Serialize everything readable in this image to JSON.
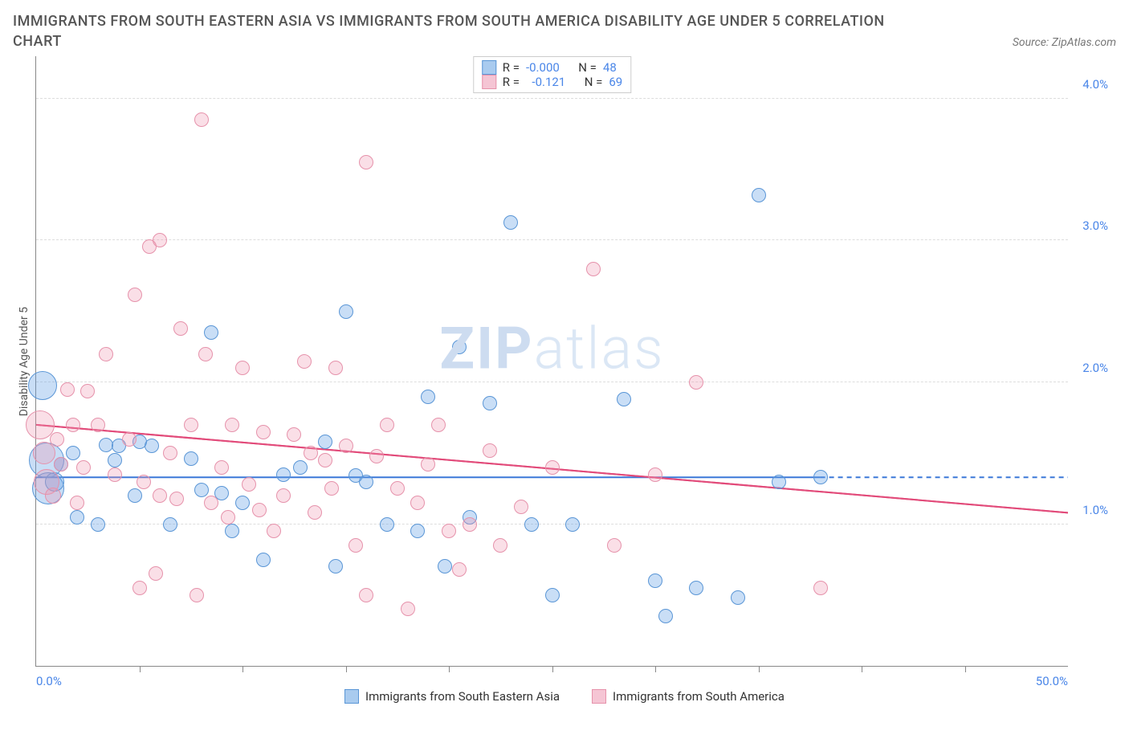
{
  "title_line1": "IMMIGRANTS FROM SOUTH EASTERN ASIA VS IMMIGRANTS FROM SOUTH AMERICA DISABILITY AGE UNDER 5 CORRELATION",
  "title_line2": "CHART",
  "source_prefix": "Source: ",
  "source_name": "ZipAtlas.com",
  "y_axis_label": "Disability Age Under 5",
  "watermark_bold": "ZIP",
  "watermark_light": "atlas",
  "chart": {
    "type": "scatter",
    "xlim": [
      0,
      50
    ],
    "ylim": [
      0,
      4.3
    ],
    "x_min_label": "0.0%",
    "x_max_label": "50.0%",
    "y_ticks": [
      1.0,
      2.0,
      3.0,
      4.0
    ],
    "y_tick_labels": [
      "1.0%",
      "2.0%",
      "3.0%",
      "4.0%"
    ],
    "x_ticks_minor": [
      5,
      10,
      15,
      20,
      25,
      30,
      35,
      40,
      45
    ],
    "grid_color": "#dddddd",
    "background_color": "#ffffff",
    "axis_color": "#888888",
    "tick_label_color": "#4a86e8",
    "series": [
      {
        "name": "Immigrants from South Eastern Asia",
        "short": "blue",
        "fill": "rgba(100,160,230,0.35)",
        "stroke": "#5a96d6",
        "swatch_fill": "#a9cbef",
        "swatch_stroke": "#5a96d6",
        "R": "-0.000",
        "N": "48",
        "trend": {
          "y_at_x0": 1.33,
          "y_at_xmax": 1.33,
          "x_end": 38,
          "dashed_after": true,
          "color": "#3b78d8",
          "width": 2
        },
        "points": [
          {
            "x": 0.3,
            "y": 1.98,
            "r": 18
          },
          {
            "x": 0.5,
            "y": 1.45,
            "r": 22
          },
          {
            "x": 0.6,
            "y": 1.25,
            "r": 20
          },
          {
            "x": 0.9,
            "y": 1.3,
            "r": 12
          },
          {
            "x": 1.2,
            "y": 1.42,
            "r": 9
          },
          {
            "x": 1.8,
            "y": 1.5,
            "r": 9
          },
          {
            "x": 2.0,
            "y": 1.05,
            "r": 9
          },
          {
            "x": 3.0,
            "y": 1.0,
            "r": 9
          },
          {
            "x": 3.4,
            "y": 1.56,
            "r": 9
          },
          {
            "x": 3.8,
            "y": 1.45,
            "r": 9
          },
          {
            "x": 4.0,
            "y": 1.55,
            "r": 9
          },
          {
            "x": 4.8,
            "y": 1.2,
            "r": 9
          },
          {
            "x": 5.0,
            "y": 1.58,
            "r": 9
          },
          {
            "x": 5.6,
            "y": 1.55,
            "r": 9
          },
          {
            "x": 6.5,
            "y": 1.0,
            "r": 9
          },
          {
            "x": 7.5,
            "y": 1.46,
            "r": 9
          },
          {
            "x": 8.0,
            "y": 1.24,
            "r": 9
          },
          {
            "x": 8.5,
            "y": 2.35,
            "r": 9
          },
          {
            "x": 9.0,
            "y": 1.22,
            "r": 9
          },
          {
            "x": 9.5,
            "y": 0.95,
            "r": 9
          },
          {
            "x": 10.0,
            "y": 1.15,
            "r": 9
          },
          {
            "x": 11.0,
            "y": 0.75,
            "r": 9
          },
          {
            "x": 12.0,
            "y": 1.35,
            "r": 9
          },
          {
            "x": 12.8,
            "y": 1.4,
            "r": 9
          },
          {
            "x": 14.0,
            "y": 1.58,
            "r": 9
          },
          {
            "x": 14.5,
            "y": 0.7,
            "r": 9
          },
          {
            "x": 15.0,
            "y": 2.5,
            "r": 9
          },
          {
            "x": 15.5,
            "y": 1.34,
            "r": 9
          },
          {
            "x": 16.0,
            "y": 1.3,
            "r": 9
          },
          {
            "x": 17.0,
            "y": 1.0,
            "r": 9
          },
          {
            "x": 18.5,
            "y": 0.95,
            "r": 9
          },
          {
            "x": 19.0,
            "y": 1.9,
            "r": 9
          },
          {
            "x": 19.8,
            "y": 0.7,
            "r": 9
          },
          {
            "x": 20.5,
            "y": 2.25,
            "r": 9
          },
          {
            "x": 21.0,
            "y": 1.05,
            "r": 9
          },
          {
            "x": 22.0,
            "y": 1.85,
            "r": 9
          },
          {
            "x": 23.0,
            "y": 3.13,
            "r": 9
          },
          {
            "x": 24.0,
            "y": 1.0,
            "r": 9
          },
          {
            "x": 25.0,
            "y": 0.5,
            "r": 9
          },
          {
            "x": 26.0,
            "y": 1.0,
            "r": 9
          },
          {
            "x": 28.5,
            "y": 1.88,
            "r": 9
          },
          {
            "x": 30.0,
            "y": 0.6,
            "r": 9
          },
          {
            "x": 30.5,
            "y": 0.35,
            "r": 9
          },
          {
            "x": 32.0,
            "y": 0.55,
            "r": 9
          },
          {
            "x": 34.0,
            "y": 0.48,
            "r": 9
          },
          {
            "x": 35.0,
            "y": 3.32,
            "r": 9
          },
          {
            "x": 36.0,
            "y": 1.3,
            "r": 9
          },
          {
            "x": 38.0,
            "y": 1.33,
            "r": 9
          }
        ]
      },
      {
        "name": "Immigrants from South America",
        "short": "pink",
        "fill": "rgba(240,150,175,0.30)",
        "stroke": "#e692ab",
        "swatch_fill": "#f5c5d4",
        "swatch_stroke": "#e692ab",
        "R": "-0.121",
        "N": "69",
        "trend": {
          "y_at_x0": 1.7,
          "y_at_xmax": 1.08,
          "x_end": 50,
          "dashed_after": false,
          "color": "#e24b7a",
          "width": 2
        },
        "points": [
          {
            "x": 0.2,
            "y": 1.7,
            "r": 18
          },
          {
            "x": 0.4,
            "y": 1.5,
            "r": 14
          },
          {
            "x": 0.5,
            "y": 1.3,
            "r": 16
          },
          {
            "x": 0.8,
            "y": 1.2,
            "r": 10
          },
          {
            "x": 1.0,
            "y": 1.6,
            "r": 9
          },
          {
            "x": 1.2,
            "y": 1.42,
            "r": 9
          },
          {
            "x": 1.5,
            "y": 1.95,
            "r": 9
          },
          {
            "x": 1.8,
            "y": 1.7,
            "r": 9
          },
          {
            "x": 2.0,
            "y": 1.15,
            "r": 9
          },
          {
            "x": 2.3,
            "y": 1.4,
            "r": 9
          },
          {
            "x": 2.5,
            "y": 1.94,
            "r": 9
          },
          {
            "x": 3.0,
            "y": 1.7,
            "r": 9
          },
          {
            "x": 3.4,
            "y": 2.2,
            "r": 9
          },
          {
            "x": 3.8,
            "y": 1.35,
            "r": 9
          },
          {
            "x": 4.5,
            "y": 1.6,
            "r": 9
          },
          {
            "x": 4.8,
            "y": 2.62,
            "r": 9
          },
          {
            "x": 5.0,
            "y": 0.55,
            "r": 9
          },
          {
            "x": 5.2,
            "y": 1.3,
            "r": 9
          },
          {
            "x": 5.5,
            "y": 2.96,
            "r": 9
          },
          {
            "x": 5.8,
            "y": 0.65,
            "r": 9
          },
          {
            "x": 6.0,
            "y": 1.2,
            "r": 9
          },
          {
            "x": 6.0,
            "y": 3.0,
            "r": 9
          },
          {
            "x": 6.5,
            "y": 1.5,
            "r": 9
          },
          {
            "x": 6.8,
            "y": 1.18,
            "r": 9
          },
          {
            "x": 7.0,
            "y": 2.38,
            "r": 9
          },
          {
            "x": 7.5,
            "y": 1.7,
            "r": 9
          },
          {
            "x": 7.8,
            "y": 0.5,
            "r": 9
          },
          {
            "x": 8.0,
            "y": 3.85,
            "r": 9
          },
          {
            "x": 8.2,
            "y": 2.2,
            "r": 9
          },
          {
            "x": 8.5,
            "y": 1.15,
            "r": 9
          },
          {
            "x": 9.0,
            "y": 1.4,
            "r": 9
          },
          {
            "x": 9.3,
            "y": 1.05,
            "r": 9
          },
          {
            "x": 9.5,
            "y": 1.7,
            "r": 9
          },
          {
            "x": 10.0,
            "y": 2.1,
            "r": 9
          },
          {
            "x": 10.3,
            "y": 1.28,
            "r": 9
          },
          {
            "x": 10.8,
            "y": 1.1,
            "r": 9
          },
          {
            "x": 11.0,
            "y": 1.65,
            "r": 9
          },
          {
            "x": 11.5,
            "y": 0.95,
            "r": 9
          },
          {
            "x": 12.0,
            "y": 1.2,
            "r": 9
          },
          {
            "x": 12.5,
            "y": 1.63,
            "r": 9
          },
          {
            "x": 13.0,
            "y": 2.15,
            "r": 9
          },
          {
            "x": 13.3,
            "y": 1.5,
            "r": 9
          },
          {
            "x": 13.5,
            "y": 1.08,
            "r": 9
          },
          {
            "x": 14.0,
            "y": 1.45,
            "r": 9
          },
          {
            "x": 14.3,
            "y": 1.25,
            "r": 9
          },
          {
            "x": 14.5,
            "y": 2.1,
            "r": 9
          },
          {
            "x": 15.0,
            "y": 1.55,
            "r": 9
          },
          {
            "x": 15.5,
            "y": 0.85,
            "r": 9
          },
          {
            "x": 16.0,
            "y": 0.5,
            "r": 9
          },
          {
            "x": 16.0,
            "y": 3.55,
            "r": 9
          },
          {
            "x": 16.5,
            "y": 1.48,
            "r": 9
          },
          {
            "x": 17.0,
            "y": 1.7,
            "r": 9
          },
          {
            "x": 17.5,
            "y": 1.25,
            "r": 9
          },
          {
            "x": 18.0,
            "y": 0.4,
            "r": 9
          },
          {
            "x": 18.5,
            "y": 1.15,
            "r": 9
          },
          {
            "x": 19.0,
            "y": 1.42,
            "r": 9
          },
          {
            "x": 19.5,
            "y": 1.7,
            "r": 9
          },
          {
            "x": 20.0,
            "y": 0.95,
            "r": 9
          },
          {
            "x": 20.5,
            "y": 0.68,
            "r": 9
          },
          {
            "x": 21.0,
            "y": 1.0,
            "r": 9
          },
          {
            "x": 22.0,
            "y": 1.52,
            "r": 9
          },
          {
            "x": 22.5,
            "y": 0.85,
            "r": 9
          },
          {
            "x": 23.5,
            "y": 1.12,
            "r": 9
          },
          {
            "x": 25.0,
            "y": 1.4,
            "r": 9
          },
          {
            "x": 27.0,
            "y": 2.8,
            "r": 9
          },
          {
            "x": 28.0,
            "y": 0.85,
            "r": 9
          },
          {
            "x": 30.0,
            "y": 1.35,
            "r": 9
          },
          {
            "x": 32.0,
            "y": 2.0,
            "r": 9
          },
          {
            "x": 38.0,
            "y": 0.55,
            "r": 9
          }
        ]
      }
    ]
  },
  "legend_box": {
    "r_label": "R =",
    "n_label": "N ="
  },
  "bottom_legend": {
    "series1": "Immigrants from South Eastern Asia",
    "series2": "Immigrants from South America"
  }
}
